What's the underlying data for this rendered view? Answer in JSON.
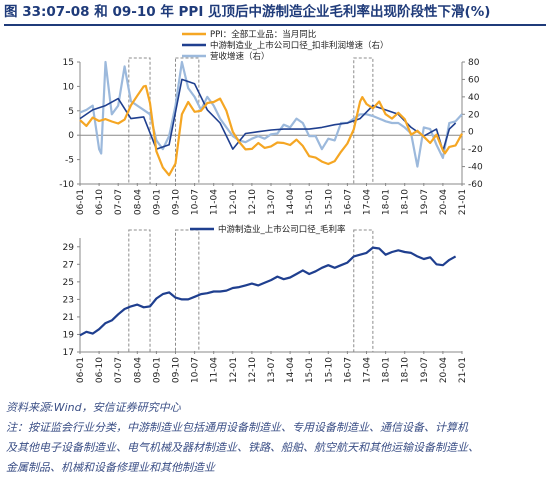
{
  "header": {
    "title": "图 33:07-08 和 09-10 年 PPI 见顶后中游制造企业毛利率出现阶段性下滑(%)"
  },
  "footer": {
    "source": "资料来源:Wind，安信证券研究中心",
    "note_lines": [
      "注：按证监会行业分类，中游制造业包括通用设备制造业、专用设备制造业、通信设备、计算机",
      "及其他电子设备制造业、电气机械及器材制造业、铁路、船舶、航空航天和其他运输设备制造业、",
      "金属制品、机械和设备修理业和其他制造业"
    ]
  },
  "colors": {
    "ppi": "#f5a623",
    "profit": "#1f3f8f",
    "revenue": "#9cb9dc",
    "margin": "#1f3f8f",
    "box": "#8c8c8c"
  },
  "chart_data": [
    {
      "type": "line",
      "legend_position": "top-center",
      "ylim": [
        -10,
        15
      ],
      "y2lim": [
        -60,
        80
      ],
      "yticks": [
        -10,
        -5,
        0,
        5,
        10,
        15
      ],
      "y2ticks": [
        -60,
        -40,
        -20,
        0,
        20,
        40,
        60,
        80
      ],
      "x_ticks": [
        "06-01",
        "06-10",
        "07-07",
        "08-04",
        "09-01",
        "09-10",
        "10-07",
        "11-04",
        "12-01",
        "12-10",
        "13-07",
        "14-04",
        "15-01",
        "15-10",
        "16-07",
        "17-04",
        "18-01",
        "18-10",
        "19-07",
        "20-04",
        "21-01"
      ],
      "highlight_ranges": [
        [
          "07-12",
          "08-10"
        ],
        [
          "09-10",
          "10-09"
        ],
        [
          "16-10",
          "17-07"
        ]
      ],
      "series": [
        {
          "name": "PPI：全部工业品：当月同比",
          "axis": "left",
          "points": [
            [
              "06-01",
              3.1
            ],
            [
              "06-04",
              1.9
            ],
            [
              "06-07",
              3.6
            ],
            [
              "06-10",
              2.9
            ],
            [
              "07-01",
              3.3
            ],
            [
              "07-04",
              2.8
            ],
            [
              "07-07",
              2.4
            ],
            [
              "07-10",
              3.2
            ],
            [
              "08-01",
              6.1
            ],
            [
              "08-04",
              8.1
            ],
            [
              "08-07",
              10.0
            ],
            [
              "08-08",
              10.1
            ],
            [
              "08-10",
              6.6
            ],
            [
              "09-01",
              -3.3
            ],
            [
              "09-04",
              -6.6
            ],
            [
              "09-07",
              -8.2
            ],
            [
              "09-10",
              -5.8
            ],
            [
              "10-01",
              4.3
            ],
            [
              "10-04",
              6.8
            ],
            [
              "10-07",
              4.8
            ],
            [
              "10-10",
              5.0
            ],
            [
              "11-01",
              6.6
            ],
            [
              "11-04",
              6.8
            ],
            [
              "11-07",
              7.5
            ],
            [
              "11-10",
              5.0
            ],
            [
              "12-01",
              0.7
            ],
            [
              "12-04",
              -1.4
            ],
            [
              "12-07",
              -2.9
            ],
            [
              "12-10",
              -2.8
            ],
            [
              "13-01",
              -1.6
            ],
            [
              "13-04",
              -2.6
            ],
            [
              "13-07",
              -2.3
            ],
            [
              "13-10",
              -1.5
            ],
            [
              "14-01",
              -1.6
            ],
            [
              "14-04",
              -2.0
            ],
            [
              "14-07",
              -0.9
            ],
            [
              "14-10",
              -2.2
            ],
            [
              "15-01",
              -4.3
            ],
            [
              "15-04",
              -4.6
            ],
            [
              "15-07",
              -5.4
            ],
            [
              "15-10",
              -5.9
            ],
            [
              "16-01",
              -5.3
            ],
            [
              "16-04",
              -3.4
            ],
            [
              "16-07",
              -1.7
            ],
            [
              "16-10",
              1.2
            ],
            [
              "17-01",
              6.9
            ],
            [
              "17-02",
              7.8
            ],
            [
              "17-04",
              6.4
            ],
            [
              "17-07",
              5.5
            ],
            [
              "17-10",
              6.9
            ],
            [
              "18-01",
              4.3
            ],
            [
              "18-04",
              3.4
            ],
            [
              "18-07",
              4.6
            ],
            [
              "18-10",
              3.3
            ],
            [
              "19-01",
              0.1
            ],
            [
              "19-04",
              0.9
            ],
            [
              "19-07",
              -0.3
            ],
            [
              "19-10",
              -1.6
            ],
            [
              "20-01",
              0.1
            ],
            [
              "20-04",
              -3.1
            ],
            [
              "20-05",
              -3.7
            ],
            [
              "20-07",
              -2.4
            ],
            [
              "20-10",
              -2.1
            ],
            [
              "21-01",
              0.3
            ]
          ]
        },
        {
          "name": "中游制造业_上市公司口径_扣非利润增速（右）",
          "axis": "right",
          "points": [
            [
              "06-01",
              15
            ],
            [
              "06-07",
              25
            ],
            [
              "07-01",
              30
            ],
            [
              "07-07",
              38
            ],
            [
              "08-01",
              15
            ],
            [
              "08-07",
              17
            ],
            [
              "09-01",
              -20
            ],
            [
              "09-07",
              -15
            ],
            [
              "10-01",
              60
            ],
            [
              "10-07",
              55
            ],
            [
              "11-01",
              25
            ],
            [
              "11-07",
              10
            ],
            [
              "12-01",
              -20
            ],
            [
              "12-07",
              -2
            ],
            [
              "13-01",
              0
            ],
            [
              "13-07",
              2
            ],
            [
              "14-01",
              3
            ],
            [
              "14-07",
              3
            ],
            [
              "15-01",
              3
            ],
            [
              "15-07",
              5
            ],
            [
              "16-01",
              8
            ],
            [
              "16-07",
              10
            ],
            [
              "17-01",
              15
            ],
            [
              "17-07",
              30
            ],
            [
              "18-01",
              25
            ],
            [
              "18-07",
              20
            ],
            [
              "19-01",
              5
            ],
            [
              "19-07",
              -5
            ],
            [
              "20-01",
              3
            ],
            [
              "20-04",
              -22
            ],
            [
              "20-07",
              3
            ],
            [
              "20-10",
              10
            ]
          ]
        },
        {
          "name": "营收增速（右）",
          "axis": "right",
          "points": [
            [
              "06-01",
              22
            ],
            [
              "06-04",
              25
            ],
            [
              "06-07",
              30
            ],
            [
              "06-10",
              -20
            ],
            [
              "06-11",
              -25
            ],
            [
              "07-01",
              80
            ],
            [
              "07-04",
              20
            ],
            [
              "07-07",
              30
            ],
            [
              "07-10",
              75
            ],
            [
              "08-01",
              35
            ],
            [
              "08-04",
              30
            ],
            [
              "08-07",
              25
            ],
            [
              "08-10",
              20
            ],
            [
              "09-01",
              -10
            ],
            [
              "09-04",
              -20
            ],
            [
              "09-07",
              -5
            ],
            [
              "09-10",
              30
            ],
            [
              "10-01",
              80
            ],
            [
              "10-04",
              50
            ],
            [
              "10-07",
              40
            ],
            [
              "10-10",
              25
            ],
            [
              "11-01",
              40
            ],
            [
              "11-04",
              30
            ],
            [
              "11-07",
              15
            ],
            [
              "11-10",
              5
            ],
            [
              "12-01",
              -5
            ],
            [
              "12-04",
              -10
            ],
            [
              "12-07",
              -12
            ],
            [
              "12-10",
              -8
            ],
            [
              "13-01",
              -5
            ],
            [
              "13-04",
              -8
            ],
            [
              "13-07",
              -3
            ],
            [
              "13-10",
              -2
            ],
            [
              "14-01",
              8
            ],
            [
              "14-04",
              5
            ],
            [
              "14-07",
              15
            ],
            [
              "14-10",
              10
            ],
            [
              "15-01",
              -5
            ],
            [
              "15-04",
              -5
            ],
            [
              "15-07",
              -20
            ],
            [
              "15-10",
              -8
            ],
            [
              "16-01",
              -10
            ],
            [
              "16-04",
              10
            ],
            [
              "16-07",
              10
            ],
            [
              "16-10",
              15
            ],
            [
              "17-01",
              20
            ],
            [
              "17-04",
              20
            ],
            [
              "17-07",
              18
            ],
            [
              "17-10",
              15
            ],
            [
              "18-01",
              12
            ],
            [
              "18-04",
              10
            ],
            [
              "18-07",
              10
            ],
            [
              "18-10",
              5
            ],
            [
              "19-01",
              -2
            ],
            [
              "19-04",
              -40
            ],
            [
              "19-07",
              5
            ],
            [
              "19-10",
              3
            ],
            [
              "20-01",
              -15
            ],
            [
              "20-04",
              -30
            ],
            [
              "20-07",
              10
            ],
            [
              "20-10",
              12
            ],
            [
              "21-01",
              20
            ]
          ]
        }
      ]
    },
    {
      "type": "line",
      "legend_position": "top-right",
      "ylim": [
        17,
        30
      ],
      "yticks": [
        17,
        19,
        21,
        23,
        25,
        27,
        29
      ],
      "x_ticks": [
        "06-01",
        "06-10",
        "07-07",
        "08-04",
        "09-01",
        "09-10",
        "10-07",
        "11-04",
        "12-01",
        "12-10",
        "13-07",
        "14-04",
        "15-01",
        "15-10",
        "16-07",
        "17-04",
        "18-01",
        "18-10",
        "19-07",
        "20-04",
        "21-01"
      ],
      "highlight_ranges": [
        [
          "07-12",
          "08-10"
        ],
        [
          "09-10",
          "10-09"
        ],
        [
          "16-10",
          "17-07"
        ]
      ],
      "series": [
        {
          "name": "中游制造业_上市公司口径_毛利率",
          "points": [
            [
              "06-01",
              18.9
            ],
            [
              "06-04",
              19.3
            ],
            [
              "06-07",
              19.1
            ],
            [
              "06-10",
              19.6
            ],
            [
              "07-01",
              20.3
            ],
            [
              "07-04",
              20.6
            ],
            [
              "07-07",
              21.3
            ],
            [
              "07-10",
              21.9
            ],
            [
              "08-01",
              22.2
            ],
            [
              "08-04",
              22.4
            ],
            [
              "08-07",
              22.1
            ],
            [
              "08-10",
              22.2
            ],
            [
              "09-01",
              23.1
            ],
            [
              "09-04",
              23.6
            ],
            [
              "09-07",
              23.8
            ],
            [
              "09-10",
              23.2
            ],
            [
              "10-01",
              23.0
            ],
            [
              "10-04",
              23.0
            ],
            [
              "10-07",
              23.3
            ],
            [
              "10-10",
              23.6
            ],
            [
              "11-01",
              23.7
            ],
            [
              "11-04",
              23.9
            ],
            [
              "11-07",
              23.9
            ],
            [
              "11-10",
              24.0
            ],
            [
              "12-01",
              24.3
            ],
            [
              "12-04",
              24.4
            ],
            [
              "12-07",
              24.6
            ],
            [
              "12-10",
              24.8
            ],
            [
              "13-01",
              24.6
            ],
            [
              "13-04",
              24.9
            ],
            [
              "13-07",
              25.2
            ],
            [
              "13-10",
              25.6
            ],
            [
              "14-01",
              25.3
            ],
            [
              "14-04",
              25.5
            ],
            [
              "14-07",
              25.9
            ],
            [
              "14-10",
              26.3
            ],
            [
              "15-01",
              25.9
            ],
            [
              "15-04",
              26.2
            ],
            [
              "15-07",
              26.6
            ],
            [
              "15-10",
              26.9
            ],
            [
              "16-01",
              26.6
            ],
            [
              "16-04",
              26.9
            ],
            [
              "16-07",
              27.2
            ],
            [
              "16-10",
              27.9
            ],
            [
              "17-01",
              28.1
            ],
            [
              "17-04",
              28.3
            ],
            [
              "17-07",
              28.9
            ],
            [
              "17-10",
              28.8
            ],
            [
              "18-01",
              28.1
            ],
            [
              "18-04",
              28.4
            ],
            [
              "18-07",
              28.6
            ],
            [
              "18-10",
              28.4
            ],
            [
              "19-01",
              28.3
            ],
            [
              "19-04",
              27.9
            ],
            [
              "19-07",
              27.6
            ],
            [
              "19-10",
              27.8
            ],
            [
              "20-01",
              27.0
            ],
            [
              "20-04",
              26.9
            ],
            [
              "20-07",
              27.5
            ],
            [
              "20-10",
              27.9
            ]
          ]
        }
      ]
    }
  ]
}
